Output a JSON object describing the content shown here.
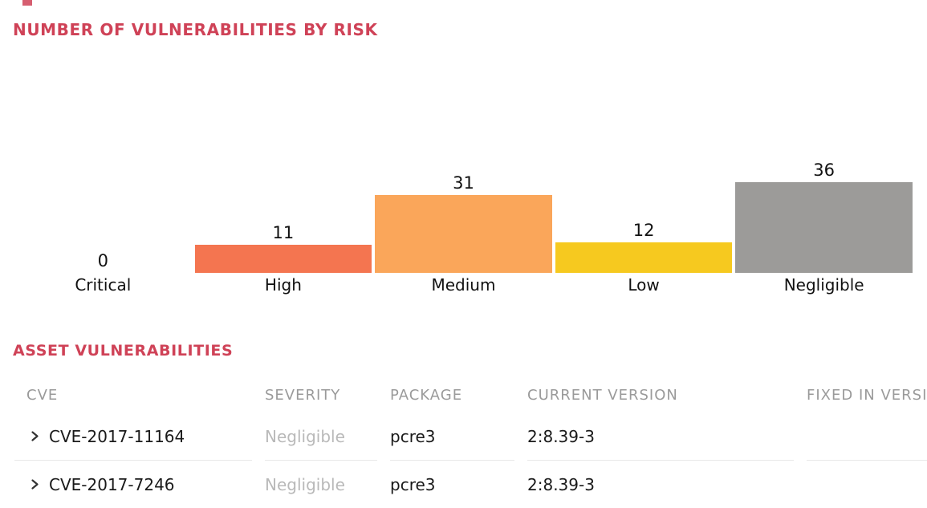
{
  "fragment": {
    "note": "small red cut-off element at top edge"
  },
  "chart_section": {
    "title": "NUMBER OF VULNERABILITIES BY RISK"
  },
  "chart_data": {
    "type": "bar",
    "title": "NUMBER OF VULNERABILITIES BY RISK",
    "categories": [
      "Critical",
      "High",
      "Medium",
      "Low",
      "Negligible"
    ],
    "values": [
      0,
      11,
      31,
      12,
      36
    ],
    "bar_colors": [
      "",
      "#f47550",
      "#faa65a",
      "#f6c91f",
      "#9c9b99"
    ],
    "value_labels": [
      "0",
      "11",
      "31",
      "12",
      "36"
    ],
    "xlabel": "",
    "ylabel": "",
    "ylim": [
      0,
      36
    ],
    "grid": false,
    "legend": false,
    "value_labels_position": "above-bars"
  },
  "table_section": {
    "title": "ASSET VULNERABILITIES",
    "columns": [
      "CVE",
      "SEVERITY",
      "PACKAGE",
      "CURRENT VERSION",
      "FIXED IN VERSION"
    ],
    "rows": [
      {
        "cve": "CVE-2017-11164",
        "severity": "Negligible",
        "package": "pcre3",
        "current_version": "2:8.39-3",
        "fixed_in_version": ""
      },
      {
        "cve": "CVE-2017-7246",
        "severity": "Negligible",
        "package": "pcre3",
        "current_version": "2:8.39-3",
        "fixed_in_version": ""
      }
    ]
  },
  "colors": {
    "accent_red": "#cf4257",
    "bar_high": "#f47550",
    "bar_medium": "#faa65a",
    "bar_low": "#f6c91f",
    "bar_negligible": "#9c9b99",
    "header_gray": "#9a9a9a",
    "severity_negligible_text": "#b9b9b9",
    "row_border": "#e9e9e9"
  },
  "icons": {
    "row_expand": "chevron-right-icon"
  }
}
